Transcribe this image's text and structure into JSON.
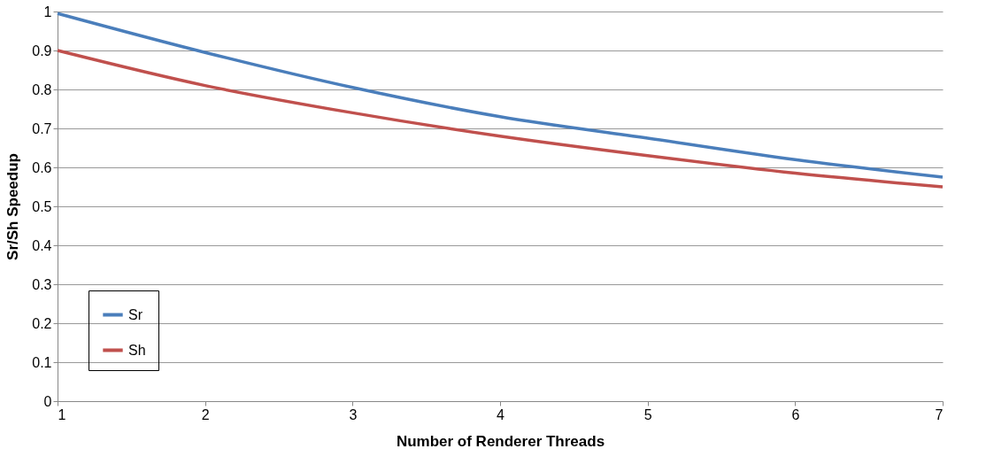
{
  "chart_data": {
    "type": "line",
    "xlabel": "Number of Renderer Threads",
    "ylabel": "Sr/Sh Speedup",
    "x": [
      1,
      2,
      3,
      4,
      5,
      6,
      7
    ],
    "series": [
      {
        "name": "Sr",
        "color": "#4a7ebb",
        "values": [
          0.995,
          0.895,
          0.805,
          0.73,
          0.675,
          0.62,
          0.575
        ]
      },
      {
        "name": "Sh",
        "color": "#c0504d",
        "values": [
          0.9,
          0.81,
          0.74,
          0.68,
          0.63,
          0.585,
          0.55
        ]
      }
    ],
    "xlim": [
      1,
      7
    ],
    "xticks": [
      1,
      2,
      3,
      4,
      5,
      6,
      7
    ],
    "ylim": [
      0,
      1
    ],
    "yticks": [
      0,
      0.1,
      0.2,
      0.3,
      0.4,
      0.5,
      0.6,
      0.7,
      0.8,
      0.9,
      1
    ],
    "grid": "y",
    "legend": "bottom left",
    "marker": "none",
    "line_style": "solid"
  }
}
